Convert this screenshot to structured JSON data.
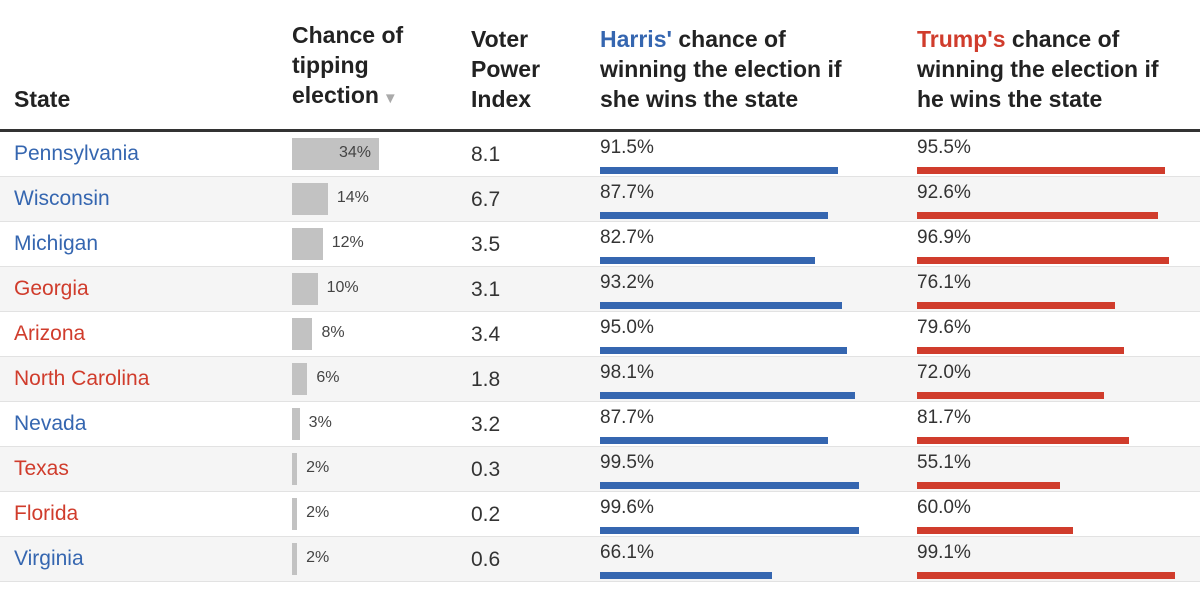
{
  "colors": {
    "dem": "#3566b0",
    "rep": "#d03c2c",
    "tip_bar": "#c2c2c2"
  },
  "header": {
    "state": "State",
    "tipping": [
      "Chance of",
      "tipping",
      "election"
    ],
    "sort_icon": "▼",
    "vpi": [
      "Voter",
      "Power",
      "Index"
    ],
    "harris_name": "Harris'",
    "harris": [
      " chance of",
      "winning the election if",
      "she wins the state"
    ],
    "trump_name": "Trump's",
    "trump": [
      " chance of",
      "winning the election if",
      "he wins the state"
    ]
  },
  "chart_data": {
    "type": "table",
    "columns": [
      "State",
      "Chance of tipping election",
      "Voter Power Index",
      "Harris' chance of winning the election if she wins the state",
      "Trump's chance of winning the election if he wins the state"
    ],
    "rows": [
      {
        "state": "Pennsylvania",
        "lean": "dem",
        "tipping": 34,
        "tipping_label": "34%",
        "vpi": "8.1",
        "harris": 91.5,
        "harris_label": "91.5%",
        "trump": 95.5,
        "trump_label": "95.5%"
      },
      {
        "state": "Wisconsin",
        "lean": "dem",
        "tipping": 14,
        "tipping_label": "14%",
        "vpi": "6.7",
        "harris": 87.7,
        "harris_label": "87.7%",
        "trump": 92.6,
        "trump_label": "92.6%"
      },
      {
        "state": "Michigan",
        "lean": "dem",
        "tipping": 12,
        "tipping_label": "12%",
        "vpi": "3.5",
        "harris": 82.7,
        "harris_label": "82.7%",
        "trump": 96.9,
        "trump_label": "96.9%"
      },
      {
        "state": "Georgia",
        "lean": "rep",
        "tipping": 10,
        "tipping_label": "10%",
        "vpi": "3.1",
        "harris": 93.2,
        "harris_label": "93.2%",
        "trump": 76.1,
        "trump_label": "76.1%"
      },
      {
        "state": "Arizona",
        "lean": "rep",
        "tipping": 8,
        "tipping_label": "8%",
        "vpi": "3.4",
        "harris": 95.0,
        "harris_label": "95.0%",
        "trump": 79.6,
        "trump_label": "79.6%"
      },
      {
        "state": "North Carolina",
        "lean": "rep",
        "tipping": 6,
        "tipping_label": "6%",
        "vpi": "1.8",
        "harris": 98.1,
        "harris_label": "98.1%",
        "trump": 72.0,
        "trump_label": "72.0%"
      },
      {
        "state": "Nevada",
        "lean": "dem",
        "tipping": 3,
        "tipping_label": "3%",
        "vpi": "3.2",
        "harris": 87.7,
        "harris_label": "87.7%",
        "trump": 81.7,
        "trump_label": "81.7%"
      },
      {
        "state": "Texas",
        "lean": "rep",
        "tipping": 2,
        "tipping_label": "2%",
        "vpi": "0.3",
        "harris": 99.5,
        "harris_label": "99.5%",
        "trump": 55.1,
        "trump_label": "55.1%"
      },
      {
        "state": "Florida",
        "lean": "rep",
        "tipping": 2,
        "tipping_label": "2%",
        "vpi": "0.2",
        "harris": 99.6,
        "harris_label": "99.6%",
        "trump": 60.0,
        "trump_label": "60.0%"
      },
      {
        "state": "Virginia",
        "lean": "dem",
        "tipping": 2,
        "tipping_label": "2%",
        "vpi": "0.6",
        "harris": 66.1,
        "harris_label": "66.1%",
        "trump": 99.1,
        "trump_label": "99.1%"
      }
    ]
  }
}
